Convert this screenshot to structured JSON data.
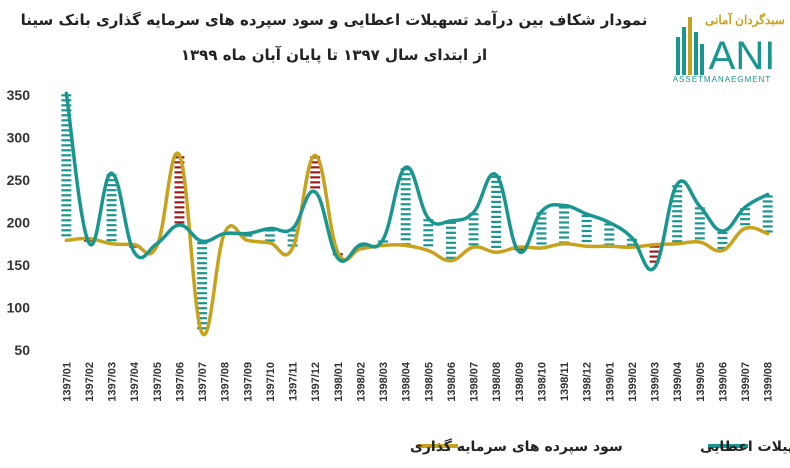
{
  "chart_data": {
    "type": "line",
    "title_line1": "نمودار شکاف بین درآمد تسهیلات اعطایی و سود سپرده های سرمایه گذاری بانک سینا",
    "title_line2": "از ابتدای سال ۱۳۹۷ تا پایان آبان ماه ۱۳۹۹",
    "ylim": [
      50,
      350
    ],
    "yticks": [
      50,
      100,
      150,
      200,
      250,
      300,
      350
    ],
    "categories": [
      "1397/01",
      "1397/02",
      "1397/03",
      "1397/04",
      "1397/05",
      "1397/06",
      "1397/07",
      "1397/08",
      "1397/09",
      "1397/10",
      "1397/11",
      "1397/12",
      "1398/01",
      "1398/02",
      "1398/03",
      "1398/04",
      "1398/05",
      "1398/06",
      "1398/07",
      "1398/08",
      "1398/09",
      "1398/10",
      "1398/11",
      "1398/12",
      "1399/01",
      "1399/02",
      "1399/03",
      "1399/04",
      "1399/05",
      "1399/06",
      "1399/07",
      "1399/08"
    ],
    "series": [
      {
        "name": "درآمد تسهیلات اعطایی",
        "color": "#1a9690",
        "values": [
          352,
          176,
          258,
          165,
          175,
          197,
          178,
          187,
          187,
          193,
          193,
          236,
          158,
          174,
          180,
          265,
          205,
          202,
          212,
          256,
          166,
          213,
          220,
          210,
          200,
          182,
          147,
          245,
          219,
          190,
          218,
          233
        ]
      },
      {
        "name": "سود سپرده های سرمایه گذاری",
        "color": "#c9a21c",
        "values": [
          179,
          181,
          175,
          174,
          172,
          279,
          70,
          188,
          179,
          176,
          170,
          279,
          165,
          169,
          173,
          173,
          167,
          155,
          171,
          165,
          171,
          170,
          175,
          172,
          172,
          171,
          174,
          175,
          177,
          167,
          193,
          187
        ]
      }
    ],
    "gap_colors": {
      "positive": "#1a9690",
      "negative": "#9b1b1b"
    },
    "grid": false,
    "legend_position": "bottom"
  },
  "logo": {
    "text_main": "ANI",
    "text_top": "سبدگردان آمانی",
    "text_sub": "ASSETMANAEGMENT",
    "colors": {
      "teal": "#1a9690",
      "gold": "#c9a21c"
    }
  }
}
